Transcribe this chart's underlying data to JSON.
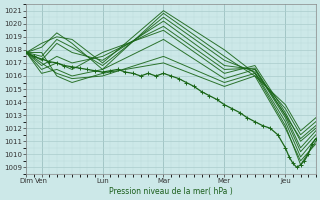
{
  "bg_color": "#cce8e8",
  "grid_color_major": "#aacccc",
  "grid_color_minor": "#bcdada",
  "line_color": "#1a6618",
  "marker_color": "#1a6618",
  "title": "Pression niveau de la mer( hPa )",
  "ylim": [
    1008.5,
    1021.5
  ],
  "yticks": [
    1009,
    1010,
    1011,
    1012,
    1013,
    1014,
    1015,
    1016,
    1017,
    1018,
    1019,
    1020,
    1021
  ],
  "day_labels": [
    "Dim",
    "Ven",
    "Lun",
    "Mar",
    "Mer",
    "Jeu"
  ],
  "day_positions": [
    0,
    12,
    60,
    108,
    156,
    204
  ],
  "total_hours": 228,
  "forecast_lines": [
    [
      0,
      1017.8,
      12,
      1018.5,
      24,
      1019.0,
      36,
      1018.8,
      60,
      1017.0,
      108,
      1021.0,
      156,
      1018.0,
      180,
      1016.2,
      204,
      1012.2,
      216,
      1009.2,
      228,
      1011.0
    ],
    [
      0,
      1017.8,
      12,
      1018.2,
      24,
      1019.3,
      36,
      1018.5,
      60,
      1016.5,
      108,
      1020.8,
      156,
      1017.5,
      180,
      1016.0,
      204,
      1012.0,
      216,
      1009.5,
      228,
      1010.8
    ],
    [
      0,
      1017.8,
      12,
      1017.5,
      24,
      1018.8,
      36,
      1018.2,
      60,
      1016.8,
      108,
      1020.5,
      156,
      1017.2,
      180,
      1016.3,
      204,
      1012.5,
      216,
      1009.8,
      228,
      1011.2
    ],
    [
      0,
      1017.8,
      12,
      1017.2,
      24,
      1018.5,
      36,
      1017.8,
      60,
      1017.2,
      108,
      1020.2,
      156,
      1016.8,
      180,
      1016.5,
      204,
      1012.8,
      216,
      1010.2,
      228,
      1011.5
    ],
    [
      0,
      1017.8,
      12,
      1016.8,
      24,
      1017.5,
      36,
      1017.0,
      60,
      1017.5,
      108,
      1019.8,
      156,
      1016.5,
      180,
      1016.6,
      204,
      1013.0,
      216,
      1010.5,
      228,
      1011.8
    ],
    [
      0,
      1017.8,
      12,
      1016.5,
      24,
      1017.0,
      36,
      1016.5,
      60,
      1017.8,
      108,
      1019.5,
      156,
      1016.2,
      180,
      1016.8,
      204,
      1013.2,
      216,
      1011.0,
      228,
      1012.0
    ],
    [
      0,
      1017.8,
      12,
      1016.2,
      24,
      1016.5,
      36,
      1016.0,
      60,
      1016.5,
      108,
      1018.8,
      156,
      1015.8,
      180,
      1016.5,
      204,
      1013.0,
      216,
      1011.2,
      228,
      1012.2
    ],
    [
      0,
      1017.8,
      12,
      1017.0,
      24,
      1016.2,
      36,
      1015.8,
      60,
      1016.0,
      108,
      1017.5,
      156,
      1015.5,
      180,
      1016.2,
      204,
      1013.5,
      216,
      1011.5,
      228,
      1012.5
    ],
    [
      0,
      1017.8,
      12,
      1017.8,
      24,
      1016.0,
      36,
      1015.5,
      60,
      1016.2,
      108,
      1017.0,
      156,
      1015.2,
      180,
      1016.0,
      204,
      1013.8,
      216,
      1011.8,
      228,
      1012.8
    ]
  ],
  "main_line_x": [
    0,
    6,
    12,
    18,
    24,
    30,
    36,
    42,
    48,
    54,
    60,
    66,
    72,
    78,
    84,
    90,
    96,
    102,
    108,
    114,
    120,
    126,
    132,
    138,
    144,
    150,
    156,
    162,
    168,
    174,
    180,
    186,
    192,
    198,
    204,
    207,
    210,
    213,
    216,
    219,
    222,
    225,
    228
  ],
  "main_line_y": [
    1017.8,
    1017.5,
    1017.3,
    1017.1,
    1017.0,
    1016.8,
    1016.7,
    1016.6,
    1016.5,
    1016.4,
    1016.3,
    1016.4,
    1016.5,
    1016.3,
    1016.2,
    1016.0,
    1016.2,
    1016.0,
    1016.2,
    1016.0,
    1015.8,
    1015.5,
    1015.2,
    1014.8,
    1014.5,
    1014.2,
    1013.8,
    1013.5,
    1013.2,
    1012.8,
    1012.5,
    1012.2,
    1012.0,
    1011.5,
    1010.5,
    1009.8,
    1009.3,
    1009.0,
    1009.2,
    1009.5,
    1010.0,
    1010.8,
    1011.2
  ]
}
